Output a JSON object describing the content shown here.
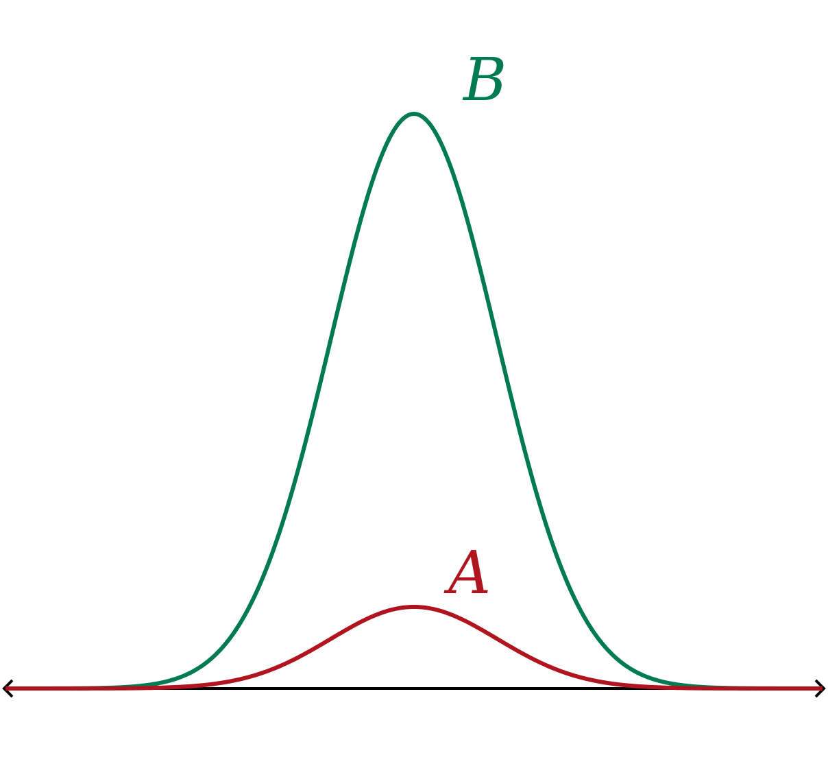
{
  "chart_data": {
    "type": "line",
    "title": "",
    "xlabel": "",
    "ylabel": "",
    "axis": {
      "color": "#000000",
      "arrows": "both-ends",
      "ticks": false,
      "grid": false
    },
    "xlim": [
      -4.9,
      4.9
    ],
    "ylim": [
      0,
      1
    ],
    "series": [
      {
        "name": "B",
        "color": "#007A50",
        "kind": "gaussian",
        "mean": 0,
        "sd": 1,
        "peak": 1.0
      },
      {
        "name": "A",
        "color": "#B0141E",
        "kind": "gaussian",
        "mean": 0,
        "sd": 1,
        "peak": 0.142
      }
    ]
  }
}
